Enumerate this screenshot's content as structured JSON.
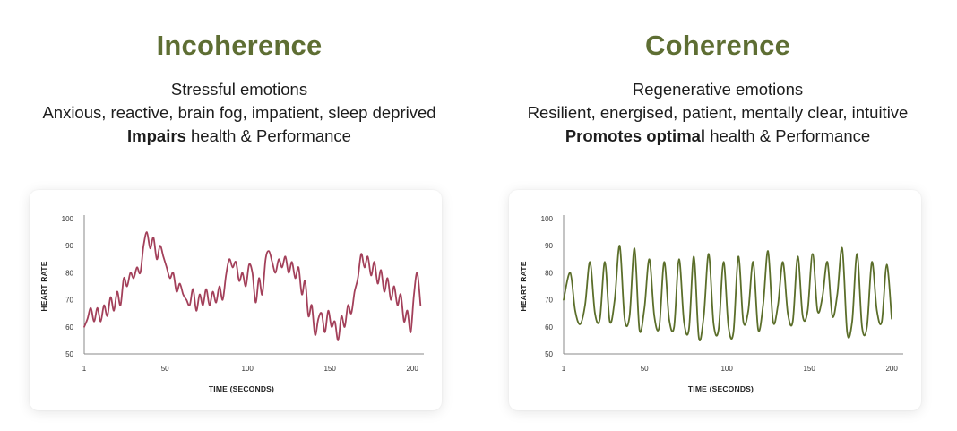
{
  "panels": [
    {
      "heading": "Incoherence",
      "heading_color": "#5e6e33",
      "line1": "Stressful emotions",
      "line2": "Anxious, reactive, brain fog, impatient, sleep deprived",
      "line3_bold": "Impairs",
      "line3_rest": " health & Performance"
    },
    {
      "heading": "Coherence",
      "heading_color": "#5e6e33",
      "line1": "Regenerative emotions",
      "line2": "Resilient, energised, patient, mentally clear, intuitive",
      "line3_bold": "Promotes optimal",
      "line3_rest": " health & Performance"
    }
  ],
  "chart_data": [
    {
      "type": "line",
      "xlabel": "TIME (SECONDS)",
      "ylabel": "HEART RATE",
      "xlim": [
        1,
        207
      ],
      "ylim": [
        50,
        100
      ],
      "xticks": [
        1,
        50,
        100,
        150,
        200
      ],
      "yticks": [
        50,
        60,
        70,
        80,
        90,
        100
      ],
      "color": "#a3405a",
      "x": [
        1,
        3,
        5,
        7,
        9,
        11,
        13,
        15,
        17,
        19,
        21,
        23,
        25,
        27,
        29,
        31,
        33,
        35,
        37,
        39,
        41,
        43,
        45,
        47,
        49,
        51,
        53,
        55,
        57,
        59,
        61,
        63,
        65,
        67,
        69,
        71,
        73,
        75,
        77,
        79,
        81,
        83,
        85,
        87,
        89,
        91,
        93,
        95,
        97,
        99,
        101,
        103,
        105,
        107,
        109,
        111,
        113,
        115,
        117,
        119,
        121,
        123,
        125,
        127,
        129,
        131,
        133,
        135,
        137,
        139,
        141,
        143,
        145,
        147,
        149,
        151,
        153,
        155,
        157,
        159,
        161,
        163,
        165,
        167,
        169,
        171,
        173,
        175,
        177,
        179,
        181,
        183,
        185,
        187,
        189,
        191,
        193,
        195,
        197,
        199,
        201,
        203,
        205
      ],
      "y": [
        60,
        63,
        67,
        62,
        67,
        62,
        68,
        64,
        71,
        66,
        73,
        68,
        78,
        75,
        80,
        78,
        82,
        80,
        90,
        95,
        89,
        93,
        85,
        90,
        86,
        82,
        78,
        80,
        73,
        76,
        72,
        70,
        68,
        74,
        66,
        72,
        68,
        74,
        68,
        73,
        69,
        75,
        70,
        79,
        85,
        82,
        84,
        77,
        80,
        75,
        83,
        80,
        69,
        78,
        72,
        85,
        88,
        84,
        80,
        85,
        82,
        86,
        80,
        84,
        78,
        82,
        72,
        77,
        64,
        68,
        57,
        63,
        65,
        58,
        66,
        60,
        62,
        55,
        64,
        60,
        68,
        65,
        73,
        78,
        87,
        82,
        86,
        79,
        84,
        76,
        81,
        73,
        78,
        70,
        75,
        68,
        72,
        62,
        66,
        58,
        72,
        80,
        68
      ]
    },
    {
      "type": "line",
      "xlabel": "TIME (SECONDS)",
      "ylabel": "HEART RATE",
      "xlim": [
        1,
        207
      ],
      "ylim": [
        50,
        100
      ],
      "xticks": [
        1,
        50,
        100,
        150,
        200
      ],
      "yticks": [
        50,
        60,
        70,
        80,
        90,
        100
      ],
      "color": "#5b6e2a",
      "x": [
        1,
        5,
        8,
        11,
        14,
        17,
        20,
        23,
        26,
        29,
        32,
        35,
        38,
        41,
        44,
        47,
        50,
        53,
        56,
        59,
        62,
        65,
        68,
        71,
        74,
        77,
        80,
        83,
        86,
        89,
        92,
        95,
        98,
        101,
        104,
        107,
        110,
        113,
        116,
        119,
        122,
        125,
        128,
        131,
        134,
        137,
        140,
        143,
        146,
        149,
        152,
        155,
        158,
        161,
        164,
        167,
        170,
        173,
        176,
        179,
        182,
        185,
        188,
        191,
        194,
        197,
        200
      ],
      "y": [
        70,
        80,
        66,
        61,
        68,
        84,
        65,
        63,
        84,
        62,
        70,
        90,
        63,
        64,
        89,
        59,
        67,
        85,
        64,
        60,
        84,
        63,
        60,
        85,
        62,
        59,
        86,
        56,
        64,
        87,
        61,
        59,
        84,
        60,
        58,
        86,
        62,
        66,
        84,
        59,
        68,
        88,
        62,
        68,
        84,
        65,
        62,
        86,
        64,
        66,
        87,
        66,
        71,
        84,
        64,
        72,
        89,
        58,
        62,
        87,
        60,
        60,
        84,
        66,
        62,
        83,
        63
      ]
    }
  ]
}
